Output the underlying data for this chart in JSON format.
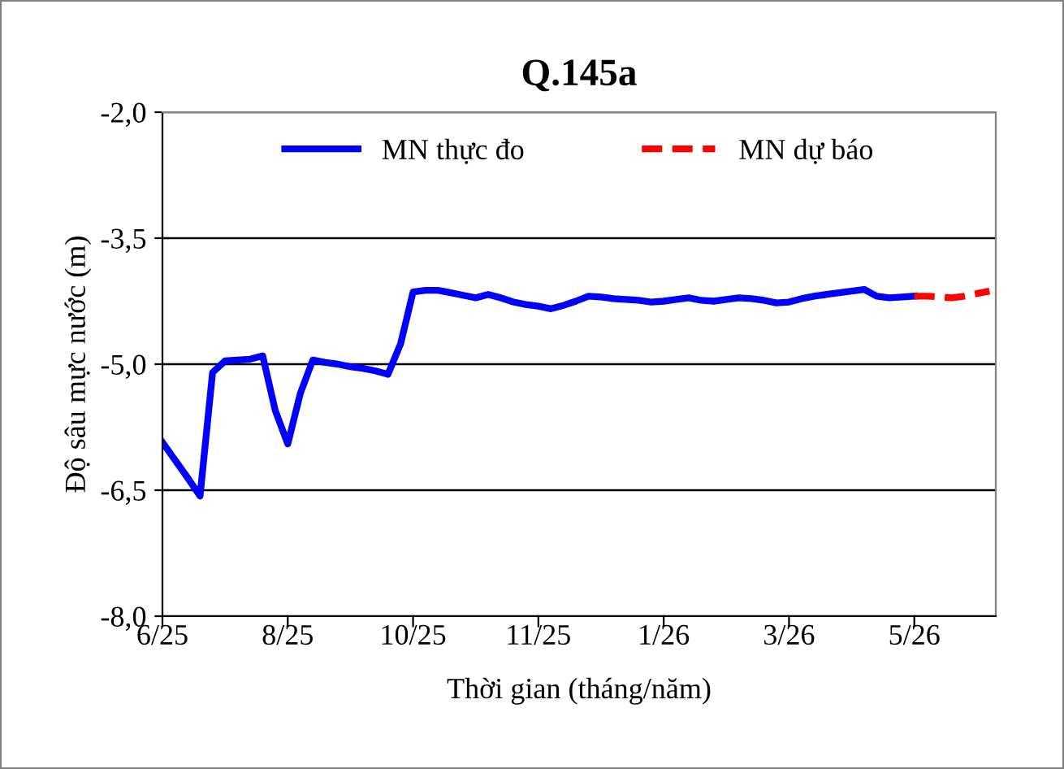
{
  "chart_data": {
    "type": "line",
    "title": "Q.145a",
    "xlabel": "Thời gian (tháng/năm)",
    "ylabel": "Độ sâu mực nước (m)",
    "categories": [
      "6/25",
      null,
      null,
      null,
      null,
      null,
      null,
      null,
      null,
      null,
      "8/25",
      null,
      null,
      null,
      null,
      null,
      null,
      null,
      null,
      null,
      "10/25",
      null,
      null,
      null,
      null,
      null,
      null,
      null,
      null,
      null,
      "11/25",
      null,
      null,
      null,
      null,
      null,
      null,
      null,
      null,
      null,
      "1/26",
      null,
      null,
      null,
      null,
      null,
      null,
      null,
      null,
      null,
      "3/26",
      null,
      null,
      null,
      null,
      null,
      null,
      null,
      null,
      null,
      "5/26",
      null,
      null,
      null,
      null,
      null,
      null
    ],
    "series": [
      {
        "name": "MN thực đo",
        "color": "#0000ff",
        "line_style": "solid",
        "values": [
          -5.93,
          -6.14,
          -6.35,
          -6.57,
          -5.1,
          -4.96,
          -4.95,
          -4.94,
          -4.9,
          -5.55,
          -5.95,
          -5.35,
          -4.95,
          -4.98,
          -5.0,
          -5.03,
          -5.05,
          -5.08,
          -5.12,
          -4.76,
          -4.14,
          -4.12,
          -4.12,
          -4.15,
          -4.18,
          -4.21,
          -4.17,
          -4.21,
          -4.26,
          -4.29,
          -4.31,
          -4.34,
          -4.3,
          -4.25,
          -4.19,
          -4.2,
          -4.22,
          -4.23,
          -4.24,
          -4.26,
          -4.25,
          -4.23,
          -4.21,
          -4.24,
          -4.25,
          -4.23,
          -4.21,
          -4.22,
          -4.24,
          -4.27,
          -4.26,
          -4.22,
          -4.19,
          -4.17,
          -4.15,
          -4.13,
          -4.11,
          -4.19,
          -4.21,
          -4.2,
          -4.19,
          null,
          null,
          null,
          null,
          null,
          null
        ]
      },
      {
        "name": "MN dự báo",
        "color": "#ff0000",
        "line_style": "dashed",
        "values": [
          null,
          null,
          null,
          null,
          null,
          null,
          null,
          null,
          null,
          null,
          null,
          null,
          null,
          null,
          null,
          null,
          null,
          null,
          null,
          null,
          null,
          null,
          null,
          null,
          null,
          null,
          null,
          null,
          null,
          null,
          null,
          null,
          null,
          null,
          null,
          null,
          null,
          null,
          null,
          null,
          null,
          null,
          null,
          null,
          null,
          null,
          null,
          null,
          null,
          null,
          null,
          null,
          null,
          null,
          null,
          null,
          null,
          null,
          null,
          null,
          -4.19,
          -4.19,
          -4.2,
          -4.21,
          -4.19,
          -4.16,
          -4.13
        ]
      }
    ],
    "ylim": [
      -8,
      -2
    ],
    "yticks": [
      {
        "value": -8,
        "label": "-8,0"
      },
      {
        "value": -6.5,
        "label": "-6,5"
      },
      {
        "value": -5,
        "label": "-5,0"
      },
      {
        "value": -3.5,
        "label": "-3,5"
      },
      {
        "value": -2,
        "label": "-2,0"
      }
    ],
    "grid": "y",
    "legend": "top",
    "marker": "none"
  }
}
